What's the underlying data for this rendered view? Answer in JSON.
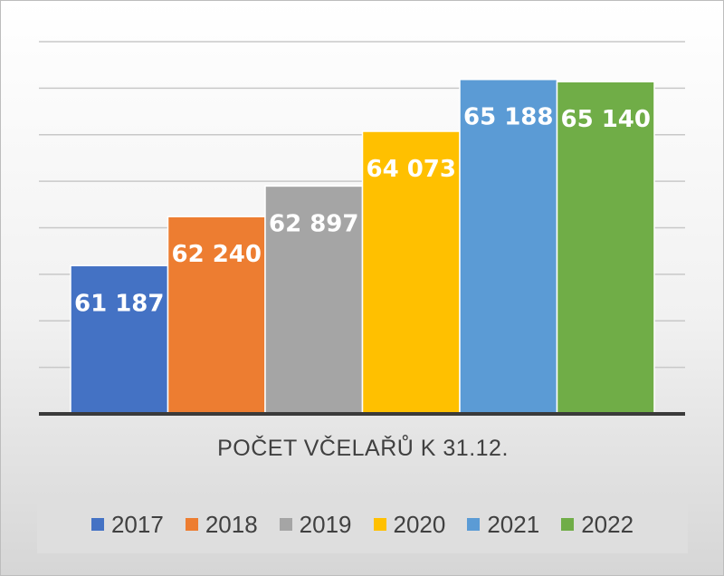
{
  "chart_data": {
    "type": "bar",
    "title": "",
    "xlabel": "POČET VČELAŘŮ K 31.12.",
    "ylabel": "",
    "ylim": [
      58000,
      66000
    ],
    "grid": true,
    "legend_position": "bottom",
    "series": [
      {
        "name": "2017",
        "value": 61187,
        "label": "61 187",
        "color": "#4472C4"
      },
      {
        "name": "2018",
        "value": 62240,
        "label": "62 240",
        "color": "#ED7D31"
      },
      {
        "name": "2019",
        "value": 62897,
        "label": "62 897",
        "color": "#A5A5A5"
      },
      {
        "name": "2020",
        "value": 64073,
        "label": "64 073",
        "color": "#FFC000"
      },
      {
        "name": "2021",
        "value": 65188,
        "label": "65 188",
        "color": "#5B9BD5"
      },
      {
        "name": "2022",
        "value": 65140,
        "label": "65 140",
        "color": "#70AD47"
      }
    ]
  }
}
